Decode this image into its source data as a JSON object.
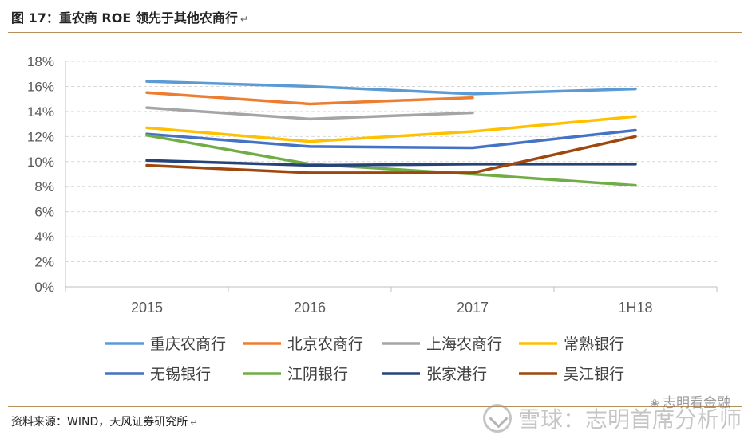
{
  "title": "图 17：重农商 ROE 领先于其他农商行",
  "title_return_mark": "↵",
  "source": "资料来源：WIND，天风证券研究所",
  "source_return_mark": "↵",
  "watermark": "雪球：志明首席分析师",
  "watermark_small": "志明看金融",
  "chart_data": {
    "type": "line",
    "categories": [
      "2015",
      "2016",
      "2017",
      "1H18"
    ],
    "y_ticks": [
      "0%",
      "2%",
      "4%",
      "6%",
      "8%",
      "10%",
      "12%",
      "14%",
      "16%",
      "18%"
    ],
    "ylim": [
      0,
      18
    ],
    "grid": true,
    "legend_position": "bottom",
    "series": [
      {
        "name": "重庆农商行",
        "color": "#5b9bd5",
        "values": [
          16.4,
          16.0,
          15.4,
          15.8
        ]
      },
      {
        "name": "北京农商行",
        "color": "#ed7d31",
        "values": [
          15.5,
          14.6,
          15.1,
          null
        ]
      },
      {
        "name": "上海农商行",
        "color": "#a5a5a5",
        "values": [
          14.3,
          13.4,
          13.9,
          null
        ]
      },
      {
        "name": "常熟银行",
        "color": "#ffc000",
        "values": [
          12.7,
          11.6,
          12.4,
          13.6
        ]
      },
      {
        "name": "无锡银行",
        "color": "#4472c4",
        "values": [
          12.2,
          11.2,
          11.1,
          12.5
        ]
      },
      {
        "name": "江阴银行",
        "color": "#70ad47",
        "values": [
          12.1,
          9.8,
          9.0,
          8.1
        ]
      },
      {
        "name": "张家港行",
        "color": "#264478",
        "values": [
          10.1,
          9.7,
          9.8,
          9.8
        ]
      },
      {
        "name": "吴江银行",
        "color": "#9e480e",
        "values": [
          9.7,
          9.1,
          9.1,
          12.0
        ]
      }
    ]
  }
}
